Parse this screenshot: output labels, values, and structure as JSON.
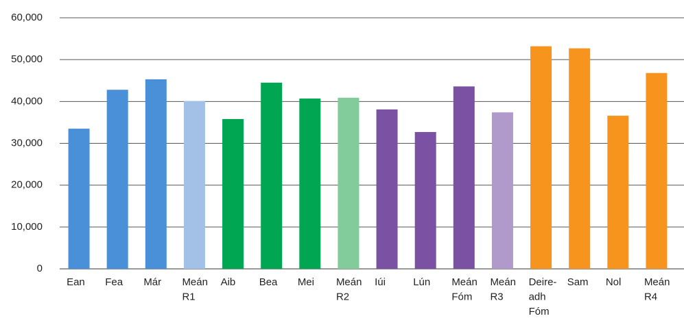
{
  "chart_data": {
    "type": "bar",
    "categories": [
      "Ean",
      "Fea",
      "Már",
      "Meán\nR1",
      "Aib",
      "Bea",
      "Mei",
      "Meán\nR2",
      "Iúi",
      "Lún",
      "Meán\nFóm",
      "Meán\nR3",
      "Deire-\nadh\nFóm",
      "Sam",
      "Nol",
      "Meán\nR4"
    ],
    "values": [
      33500,
      42800,
      45300,
      40100,
      35800,
      44500,
      40700,
      40900,
      38100,
      32700,
      43600,
      37400,
      53200,
      52700,
      36600,
      46800
    ],
    "colors": [
      "#4a90d9",
      "#4a90d9",
      "#4a90d9",
      "#a3c0e6",
      "#00a651",
      "#00a651",
      "#00a651",
      "#82cc9c",
      "#7b52a3",
      "#7b52a3",
      "#7b52a3",
      "#b09acb",
      "#f7941d",
      "#f7941d",
      "#f7941d",
      "#f7941d"
    ],
    "ylim": [
      0,
      60000
    ],
    "yticks": [
      0,
      {
        "value": 10000,
        "label": "10,000"
      },
      {
        "value": 20000,
        "label": "20,000"
      },
      {
        "value": 30000,
        "label": "30,000"
      },
      {
        "value": 40000,
        "label": "40,000"
      },
      {
        "value": 50000,
        "label": "50,000"
      },
      {
        "value": 60000,
        "label": "60,000"
      }
    ],
    "grid": true
  }
}
